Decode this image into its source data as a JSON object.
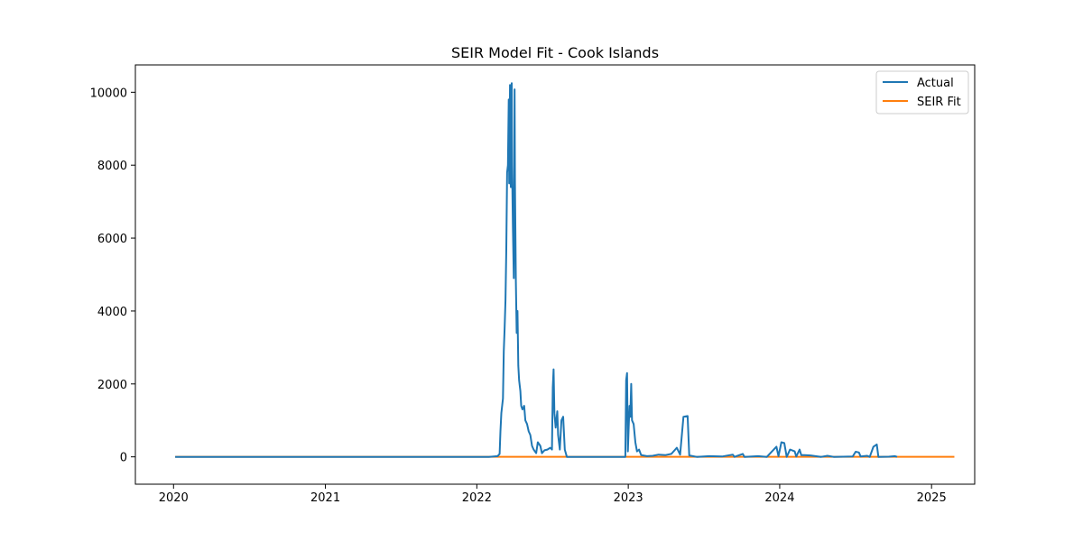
{
  "chart_data": {
    "type": "line",
    "title": "SEIR Model Fit - Cook Islands",
    "xlabel": "",
    "ylabel": "",
    "x_axis": {
      "type": "date",
      "range": [
        "2019-10-01",
        "2025-04-15"
      ],
      "ticks": [
        {
          "date": "2020-01-01",
          "label": "2020"
        },
        {
          "date": "2021-01-01",
          "label": "2021"
        },
        {
          "date": "2022-01-01",
          "label": "2022"
        },
        {
          "date": "2023-01-01",
          "label": "2023"
        },
        {
          "date": "2024-01-01",
          "label": "2024"
        },
        {
          "date": "2025-01-01",
          "label": "2025"
        }
      ]
    },
    "y_axis": {
      "range": [
        -750,
        10750
      ],
      "ticks": [
        0,
        2000,
        4000,
        6000,
        8000,
        10000
      ],
      "tick_labels": [
        "0",
        "2000",
        "4000",
        "6000",
        "8000",
        "10000"
      ]
    },
    "grid": false,
    "legend": "top-right",
    "series": [
      {
        "name": "Actual",
        "color": "#1f77b4",
        "points": [
          [
            "2020-01-05",
            0
          ],
          [
            "2022-01-30",
            0
          ],
          [
            "2022-02-20",
            20
          ],
          [
            "2022-02-25",
            80
          ],
          [
            "2022-02-27",
            700
          ],
          [
            "2022-03-01",
            1200
          ],
          [
            "2022-03-05",
            1600
          ],
          [
            "2022-03-07",
            2900
          ],
          [
            "2022-03-09",
            3500
          ],
          [
            "2022-03-11",
            4300
          ],
          [
            "2022-03-13",
            5700
          ],
          [
            "2022-03-15",
            7800
          ],
          [
            "2022-03-17",
            8000
          ],
          [
            "2022-03-19",
            9800
          ],
          [
            "2022-03-20",
            7500
          ],
          [
            "2022-03-22",
            10200
          ],
          [
            "2022-03-24",
            7400
          ],
          [
            "2022-03-26",
            10250
          ],
          [
            "2022-03-27",
            8000
          ],
          [
            "2022-03-29",
            6300
          ],
          [
            "2022-03-31",
            4900
          ],
          [
            "2022-04-02",
            10080
          ],
          [
            "2022-04-03",
            7500
          ],
          [
            "2022-04-05",
            4800
          ],
          [
            "2022-04-07",
            3400
          ],
          [
            "2022-04-09",
            4000
          ],
          [
            "2022-04-11",
            2500
          ],
          [
            "2022-04-13",
            2100
          ],
          [
            "2022-04-16",
            1800
          ],
          [
            "2022-04-18",
            1400
          ],
          [
            "2022-04-21",
            1300
          ],
          [
            "2022-04-25",
            1400
          ],
          [
            "2022-04-28",
            1000
          ],
          [
            "2022-05-02",
            900
          ],
          [
            "2022-05-06",
            700
          ],
          [
            "2022-05-10",
            600
          ],
          [
            "2022-05-14",
            300
          ],
          [
            "2022-05-18",
            200
          ],
          [
            "2022-05-24",
            100
          ],
          [
            "2022-05-28",
            400
          ],
          [
            "2022-06-03",
            300
          ],
          [
            "2022-06-07",
            100
          ],
          [
            "2022-06-13",
            180
          ],
          [
            "2022-06-20",
            200
          ],
          [
            "2022-06-27",
            250
          ],
          [
            "2022-07-01",
            200
          ],
          [
            "2022-07-03",
            1900
          ],
          [
            "2022-07-05",
            2400
          ],
          [
            "2022-07-07",
            1200
          ],
          [
            "2022-07-10",
            800
          ],
          [
            "2022-07-14",
            1250
          ],
          [
            "2022-07-16",
            600
          ],
          [
            "2022-07-20",
            200
          ],
          [
            "2022-07-24",
            1000
          ],
          [
            "2022-07-28",
            1100
          ],
          [
            "2022-08-01",
            200
          ],
          [
            "2022-08-06",
            0
          ],
          [
            "2022-12-25",
            0
          ],
          [
            "2022-12-27",
            2100
          ],
          [
            "2022-12-29",
            2300
          ],
          [
            "2022-12-31",
            150
          ],
          [
            "2023-01-02",
            800
          ],
          [
            "2023-01-04",
            1400
          ],
          [
            "2023-01-06",
            1100
          ],
          [
            "2023-01-08",
            2000
          ],
          [
            "2023-01-10",
            1000
          ],
          [
            "2023-01-14",
            900
          ],
          [
            "2023-01-18",
            400
          ],
          [
            "2023-01-22",
            150
          ],
          [
            "2023-01-27",
            200
          ],
          [
            "2023-02-01",
            50
          ],
          [
            "2023-02-15",
            20
          ],
          [
            "2023-03-01",
            30
          ],
          [
            "2023-03-15",
            60
          ],
          [
            "2023-04-01",
            50
          ],
          [
            "2023-04-15",
            80
          ],
          [
            "2023-04-28",
            250
          ],
          [
            "2023-05-06",
            60
          ],
          [
            "2023-05-14",
            1100
          ],
          [
            "2023-05-24",
            1120
          ],
          [
            "2023-05-28",
            40
          ],
          [
            "2023-06-15",
            0
          ],
          [
            "2023-07-15",
            20
          ],
          [
            "2023-08-15",
            10
          ],
          [
            "2023-09-10",
            60
          ],
          [
            "2023-09-14",
            0
          ],
          [
            "2023-10-04",
            80
          ],
          [
            "2023-10-08",
            0
          ],
          [
            "2023-11-10",
            20
          ],
          [
            "2023-12-01",
            0
          ],
          [
            "2023-12-24",
            280
          ],
          [
            "2023-12-29",
            20
          ],
          [
            "2024-01-05",
            400
          ],
          [
            "2024-01-12",
            380
          ],
          [
            "2024-01-18",
            0
          ],
          [
            "2024-01-26",
            200
          ],
          [
            "2024-02-06",
            150
          ],
          [
            "2024-02-10",
            10
          ],
          [
            "2024-02-18",
            200
          ],
          [
            "2024-02-22",
            50
          ],
          [
            "2024-03-01",
            50
          ],
          [
            "2024-03-15",
            40
          ],
          [
            "2024-04-10",
            0
          ],
          [
            "2024-04-25",
            30
          ],
          [
            "2024-05-10",
            0
          ],
          [
            "2024-06-25",
            10
          ],
          [
            "2024-07-02",
            140
          ],
          [
            "2024-07-10",
            120
          ],
          [
            "2024-07-14",
            10
          ],
          [
            "2024-07-30",
            30
          ],
          [
            "2024-08-05",
            0
          ],
          [
            "2024-08-14",
            280
          ],
          [
            "2024-08-22",
            340
          ],
          [
            "2024-08-26",
            0
          ],
          [
            "2024-09-20",
            5
          ],
          [
            "2024-10-05",
            20
          ],
          [
            "2024-10-10",
            0
          ]
        ]
      },
      {
        "name": "SEIR Fit",
        "color": "#ff7f0e",
        "points": [
          [
            "2020-01-05",
            0
          ],
          [
            "2025-02-25",
            0
          ]
        ]
      }
    ]
  }
}
